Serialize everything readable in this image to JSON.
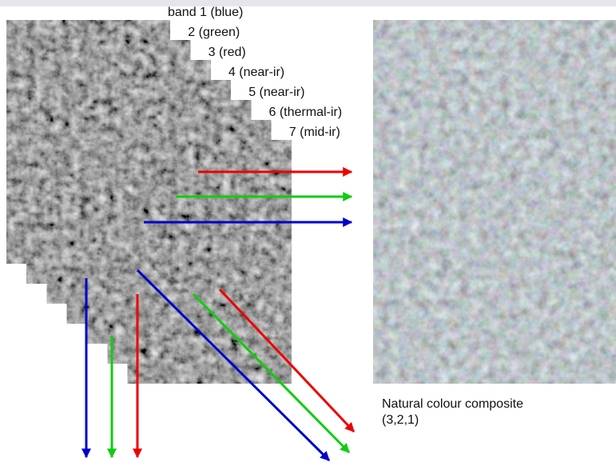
{
  "bands": [
    "band 1 (blue)",
    "2 (green)",
    "3 (red)",
    "4 (near-ir)",
    "5 (near-ir)",
    "6 (thermal-ir)",
    "7 (mid-ir)"
  ],
  "composite": {
    "title": "Natural colour composite",
    "bands": "(3,2,1)"
  }
}
